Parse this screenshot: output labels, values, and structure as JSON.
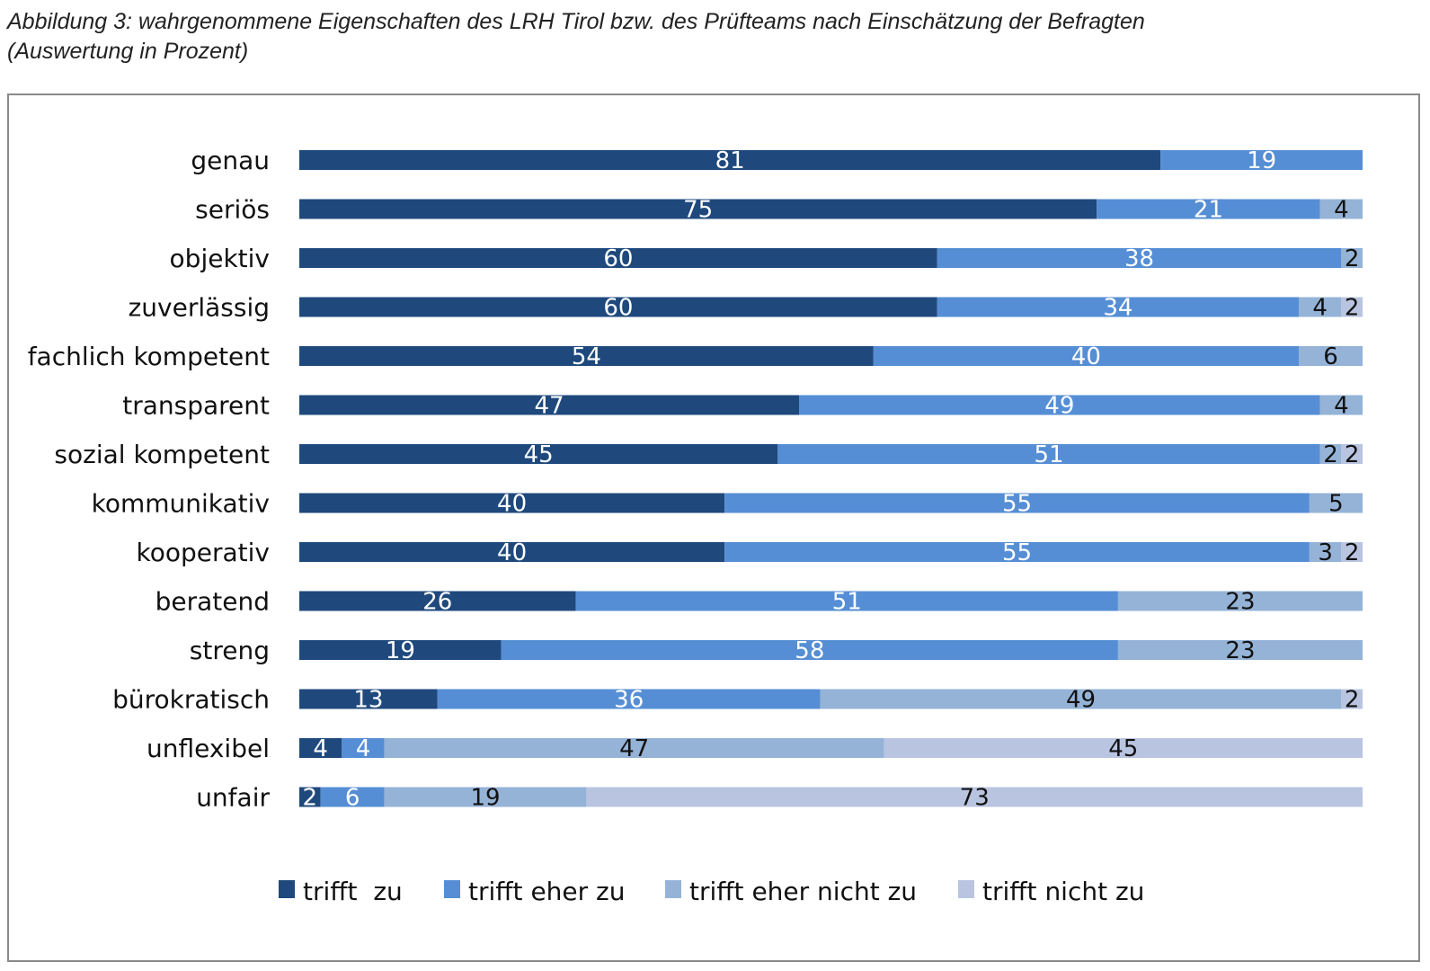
{
  "figure": {
    "caption_line1": "Abbildung 3: wahrgenommene Eigenschaften des LRH Tirol bzw. des Prüfteams nach Einschätzung der Befragten",
    "caption_line2": "(Auswertung in Prozent)"
  },
  "chart_data": {
    "type": "bar",
    "orientation": "horizontal",
    "stacked": true,
    "categories": [
      "genau",
      "seriös",
      "objektiv",
      "zuverlässig",
      "fachlich kompetent",
      "transparent",
      "sozial kompetent",
      "kommunikativ",
      "kooperativ",
      "beratend",
      "streng",
      "bürokratisch",
      "unflexibel",
      "unfair"
    ],
    "series": [
      {
        "name": "trifft  zu",
        "color": "#1f497d",
        "label_color": "#ffffff",
        "values": [
          81,
          75,
          60,
          60,
          54,
          47,
          45,
          40,
          40,
          26,
          19,
          13,
          4,
          2
        ]
      },
      {
        "name": "trifft eher zu",
        "color": "#558ed5",
        "label_color": "#ffffff",
        "values": [
          19,
          21,
          38,
          34,
          40,
          49,
          51,
          55,
          55,
          51,
          58,
          36,
          4,
          6
        ]
      },
      {
        "name": "trifft eher nicht zu",
        "color": "#95b3d7",
        "label_color": "#111111",
        "values": [
          null,
          4,
          2,
          4,
          6,
          4,
          2,
          5,
          3,
          23,
          23,
          49,
          47,
          19
        ]
      },
      {
        "name": "trifft nicht zu",
        "color": "#b9c5e0",
        "label_color": "#111111",
        "values": [
          null,
          null,
          null,
          2,
          null,
          null,
          2,
          null,
          2,
          null,
          null,
          2,
          45,
          73
        ]
      }
    ],
    "xlim": [
      0,
      100
    ],
    "grid": false,
    "legend_position": "bottom"
  }
}
